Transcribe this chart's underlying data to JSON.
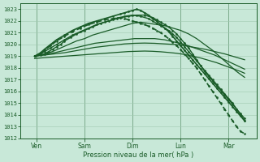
{
  "title": "Pression niveau de la mer( hPa )",
  "bg_color": "#c8e8d8",
  "plot_bg_color": "#c8e8d8",
  "grid_major_color": "#a0c8b0",
  "grid_minor_color": "#b4d8c0",
  "line_color": "#1a5c28",
  "ylim": [
    1012,
    1023.5
  ],
  "yticks": [
    1012,
    1013,
    1014,
    1015,
    1016,
    1017,
    1018,
    1019,
    1020,
    1021,
    1022,
    1023
  ],
  "days": [
    "Ven",
    "Sam",
    "Dim",
    "Lun",
    "Mar"
  ],
  "day_positions": [
    6,
    30,
    54,
    78,
    102
  ],
  "xlim": [
    -2,
    116
  ],
  "total_hours": 110,
  "series": [
    {
      "x": [
        5,
        8,
        10,
        12,
        14,
        16,
        18,
        20,
        23,
        26,
        30,
        34,
        38,
        42,
        46,
        50,
        54,
        58,
        62,
        64,
        66,
        68,
        70,
        72,
        74,
        76,
        78,
        80,
        82,
        84,
        86,
        88,
        90,
        92,
        94,
        96,
        98,
        100,
        102,
        104,
        106,
        108,
        110
      ],
      "y": [
        1019.0,
        1019.1,
        1019.2,
        1019.4,
        1019.6,
        1019.8,
        1020.0,
        1020.3,
        1020.6,
        1020.9,
        1021.2,
        1021.5,
        1021.8,
        1022.0,
        1022.2,
        1022.4,
        1022.5,
        1022.4,
        1022.2,
        1022.0,
        1021.8,
        1021.6,
        1021.4,
        1021.2,
        1020.9,
        1020.6,
        1020.2,
        1019.8,
        1019.4,
        1019.0,
        1018.6,
        1018.2,
        1017.8,
        1017.4,
        1017.0,
        1016.6,
        1016.2,
        1015.8,
        1015.4,
        1015.0,
        1014.5,
        1014.0,
        1013.5
      ],
      "marker": true,
      "lw": 1.0,
      "ls": "-"
    },
    {
      "x": [
        5,
        8,
        10,
        14,
        18,
        22,
        26,
        30,
        34,
        38,
        42,
        46,
        50,
        54,
        58,
        62,
        66,
        70,
        74,
        78,
        82,
        86,
        90,
        94,
        98,
        102,
        106,
        110
      ],
      "y": [
        1019.0,
        1019.1,
        1019.2,
        1019.4,
        1019.7,
        1020.0,
        1020.3,
        1020.5,
        1020.8,
        1021.0,
        1021.2,
        1021.4,
        1021.6,
        1021.8,
        1021.9,
        1021.8,
        1021.7,
        1021.6,
        1021.4,
        1021.2,
        1020.9,
        1020.5,
        1020.0,
        1019.5,
        1018.9,
        1018.3,
        1017.7,
        1017.2
      ],
      "marker": false,
      "lw": 0.9,
      "ls": "-"
    },
    {
      "x": [
        5,
        10,
        15,
        20,
        25,
        30,
        35,
        40,
        45,
        50,
        55,
        60,
        65,
        70,
        75,
        80,
        85,
        90,
        95,
        100,
        105,
        110
      ],
      "y": [
        1019.0,
        1019.15,
        1019.3,
        1019.5,
        1019.7,
        1019.9,
        1020.1,
        1020.2,
        1020.3,
        1020.4,
        1020.5,
        1020.5,
        1020.5,
        1020.4,
        1020.2,
        1020.0,
        1019.7,
        1019.4,
        1019.1,
        1018.7,
        1018.3,
        1017.9
      ],
      "marker": false,
      "lw": 0.9,
      "ls": "-"
    },
    {
      "x": [
        5,
        10,
        15,
        20,
        25,
        30,
        35,
        40,
        45,
        50,
        55,
        60,
        65,
        70,
        75,
        80,
        85,
        90,
        95,
        100,
        105,
        110
      ],
      "y": [
        1019.0,
        1019.1,
        1019.2,
        1019.3,
        1019.45,
        1019.6,
        1019.75,
        1019.85,
        1019.95,
        1020.05,
        1020.1,
        1020.12,
        1020.1,
        1020.05,
        1020.0,
        1019.9,
        1019.75,
        1019.6,
        1019.4,
        1019.2,
        1018.95,
        1018.7
      ],
      "marker": false,
      "lw": 0.9,
      "ls": "-"
    },
    {
      "x": [
        5,
        8,
        12,
        16,
        20,
        24,
        28,
        32,
        36,
        40,
        44,
        48,
        52,
        56,
        60,
        64,
        68,
        72,
        76,
        80,
        84,
        88,
        92,
        96,
        100,
        104,
        108,
        110
      ],
      "y": [
        1018.8,
        1018.85,
        1018.9,
        1018.95,
        1019.0,
        1019.05,
        1019.1,
        1019.15,
        1019.2,
        1019.25,
        1019.3,
        1019.35,
        1019.4,
        1019.42,
        1019.44,
        1019.42,
        1019.38,
        1019.32,
        1019.25,
        1019.15,
        1019.0,
        1018.85,
        1018.65,
        1018.45,
        1018.2,
        1017.95,
        1017.7,
        1017.55
      ],
      "marker": false,
      "lw": 0.9,
      "ls": "-"
    },
    {
      "x": [
        5,
        8,
        10,
        13,
        16,
        20,
        24,
        28,
        32,
        36,
        40,
        44,
        48,
        52,
        56,
        60,
        64,
        66,
        68,
        70,
        72,
        74,
        76,
        78,
        80,
        82,
        84,
        86,
        88,
        90,
        92,
        94,
        96,
        98,
        100,
        102,
        104,
        106,
        108,
        110
      ],
      "y": [
        1019.0,
        1019.2,
        1019.4,
        1019.7,
        1020.0,
        1020.4,
        1020.8,
        1021.1,
        1021.4,
        1021.7,
        1021.9,
        1022.1,
        1022.3,
        1022.4,
        1022.5,
        1022.5,
        1022.3,
        1022.1,
        1021.9,
        1021.7,
        1021.5,
        1021.2,
        1020.9,
        1020.5,
        1020.1,
        1019.7,
        1019.2,
        1018.7,
        1018.2,
        1017.7,
        1017.3,
        1016.9,
        1016.5,
        1016.1,
        1015.7,
        1015.3,
        1014.9,
        1014.5,
        1014.1,
        1013.7
      ],
      "marker": true,
      "lw": 1.0,
      "ls": "-"
    },
    {
      "x": [
        5,
        8,
        10,
        13,
        16,
        20,
        24,
        28,
        32,
        36,
        40,
        44,
        48,
        50,
        52,
        54,
        56,
        58,
        60,
        62,
        64,
        66,
        68,
        70,
        72,
        74,
        76,
        78,
        80,
        82,
        84,
        86,
        88,
        90,
        92,
        94,
        96,
        98,
        100,
        102,
        104,
        106,
        108,
        110
      ],
      "y": [
        1019.0,
        1019.3,
        1019.6,
        1020.0,
        1020.4,
        1020.8,
        1021.2,
        1021.5,
        1021.8,
        1022.0,
        1022.2,
        1022.4,
        1022.6,
        1022.7,
        1022.8,
        1022.9,
        1023.0,
        1022.9,
        1022.7,
        1022.5,
        1022.2,
        1022.0,
        1021.7,
        1021.4,
        1021.1,
        1020.7,
        1020.3,
        1019.9,
        1019.5,
        1019.1,
        1018.7,
        1018.3,
        1017.9,
        1017.5,
        1017.1,
        1016.7,
        1016.3,
        1015.9,
        1015.5,
        1015.1,
        1014.7,
        1014.3,
        1013.9,
        1013.5
      ],
      "marker": true,
      "lw": 1.2,
      "ls": "-"
    },
    {
      "x": [
        5,
        8,
        10,
        13,
        16,
        20,
        24,
        28,
        32,
        36,
        40,
        44,
        46,
        48,
        50,
        52,
        54,
        56,
        58,
        60,
        62,
        64,
        66,
        68,
        70,
        72,
        74,
        76,
        78,
        80,
        82,
        84,
        86,
        88,
        90,
        92,
        94,
        96,
        98,
        100,
        102,
        104,
        106,
        108,
        110
      ],
      "y": [
        1019.0,
        1019.2,
        1019.5,
        1019.9,
        1020.3,
        1020.7,
        1021.1,
        1021.4,
        1021.7,
        1021.9,
        1022.1,
        1022.2,
        1022.25,
        1022.3,
        1022.2,
        1022.1,
        1022.0,
        1021.9,
        1021.8,
        1021.7,
        1021.55,
        1021.4,
        1021.2,
        1021.0,
        1020.75,
        1020.5,
        1020.2,
        1019.9,
        1019.55,
        1019.2,
        1018.8,
        1018.4,
        1018.0,
        1017.5,
        1017.0,
        1016.5,
        1016.0,
        1015.5,
        1015.0,
        1014.5,
        1014.0,
        1013.5,
        1013.0,
        1012.6,
        1012.4
      ],
      "marker": true,
      "lw": 1.2,
      "ls": "--"
    }
  ]
}
